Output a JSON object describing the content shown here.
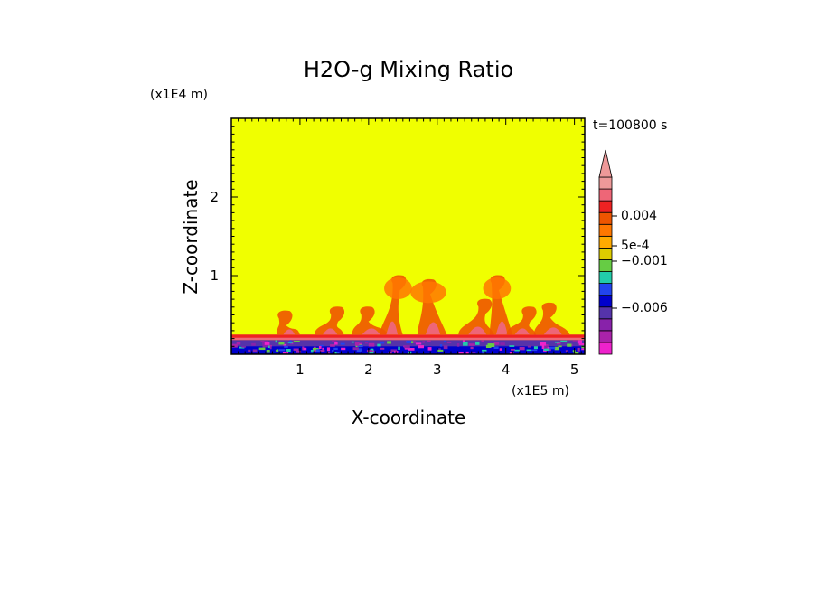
{
  "chart_data": {
    "type": "heatmap",
    "title": "H2O-g Mixing Ratio",
    "xlabel": "X-coordinate",
    "ylabel": "Z-coordinate",
    "x_unit": "(x1E5 m)",
    "y_unit": "(x1E4 m)",
    "time_label": "t=100800 s",
    "xlim": [
      0,
      5.15
    ],
    "ylim": [
      0,
      3.0
    ],
    "x_ticks": [
      "1",
      "2",
      "3",
      "4",
      "5"
    ],
    "x_tick_values": [
      1,
      2,
      3,
      4,
      5
    ],
    "y_ticks": [
      "1",
      "2"
    ],
    "y_tick_values": [
      1,
      2
    ],
    "background_color": "#f0ff00",
    "colorbar": {
      "colors": [
        "#ee22cc",
        "#aa22aa",
        "#8822aa",
        "#5533aa",
        "#0000cc",
        "#2244ee",
        "#22ccaa",
        "#66cc44",
        "#ddcc00",
        "#ffaa00",
        "#ff7700",
        "#ee5500",
        "#ee2222",
        "#ee6677",
        "#ee9999"
      ],
      "labels": [
        "0.004",
        "5e-4",
        "−0.001",
        "−0.006"
      ],
      "label_values": [
        0.004,
        0.0005,
        -0.001,
        -0.006
      ],
      "extend": "max",
      "extend_color": "#ee9999"
    },
    "plumes": [
      {
        "x": 0.85,
        "top": 0.55
      },
      {
        "x": 1.45,
        "top": 0.6
      },
      {
        "x": 2.05,
        "top": 0.6
      },
      {
        "x": 2.35,
        "top": 1.0
      },
      {
        "x": 2.95,
        "top": 0.95
      },
      {
        "x": 3.6,
        "top": 0.7
      },
      {
        "x": 3.95,
        "top": 1.0
      },
      {
        "x": 4.25,
        "top": 0.6
      },
      {
        "x": 4.7,
        "top": 0.65
      }
    ]
  }
}
